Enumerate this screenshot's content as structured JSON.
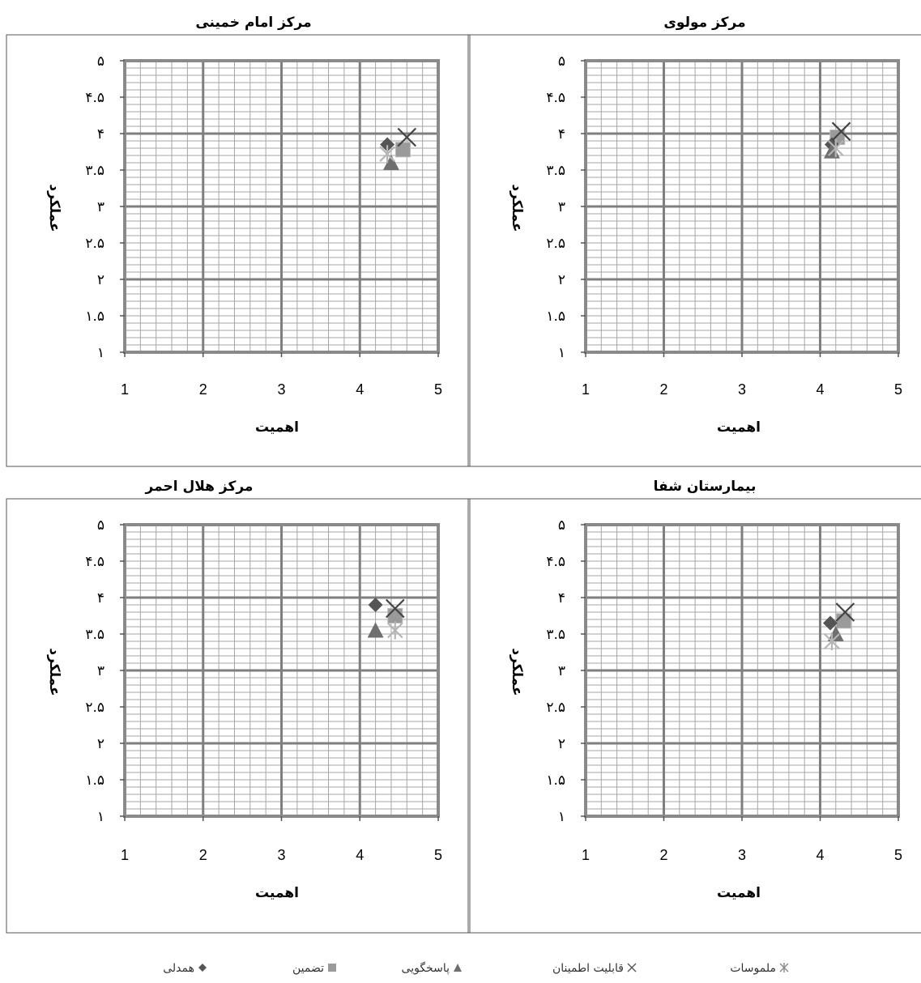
{
  "colors": {
    "frame": "#8a8a8a",
    "grid_minor": "#a6a6a6",
    "grid_major": "#7f7f7f",
    "marker_dark": "#555555",
    "marker_gray": "#9a9a9a",
    "marker_light": "#b5b5b5"
  },
  "legend": [
    {
      "label": "ملموسات",
      "marker": "asterisk"
    },
    {
      "label": "قابلیت اطمینان",
      "marker": "x"
    },
    {
      "label": "پاسخگویی",
      "marker": "triangle"
    },
    {
      "label": "تضمین",
      "marker": "square"
    },
    {
      "label": "همدلی",
      "marker": "diamond"
    }
  ],
  "chart_data": [
    {
      "type": "scatter",
      "title": "مرکز مولوی",
      "xlabel": "اهمیت",
      "ylabel": "عملکرد",
      "xlim": [
        1,
        5
      ],
      "ylim": [
        1,
        5
      ],
      "x_ticks": [
        "1",
        "2",
        "3",
        "4",
        "5"
      ],
      "y_ticks": [
        "۱",
        "۱.۵",
        "۲",
        "۲.۵",
        "۳",
        "۳.۵",
        "۴",
        "۴.۵",
        "۵"
      ],
      "grid": true,
      "series": [
        {
          "name": "ملموسات",
          "x": 4.2,
          "y": 3.8
        },
        {
          "name": "قابلیت اطمینان",
          "x": 4.27,
          "y": 4.03
        },
        {
          "name": "پاسخگویی",
          "x": 4.15,
          "y": 3.76
        },
        {
          "name": "تضمین",
          "x": 4.22,
          "y": 3.95
        },
        {
          "name": "همدلی",
          "x": 4.15,
          "y": 3.85
        }
      ]
    },
    {
      "type": "scatter",
      "title": "مرکز امام خمینی",
      "xlabel": "اهمیت",
      "ylabel": "عملکرد",
      "xlim": [
        1,
        5
      ],
      "ylim": [
        1,
        5
      ],
      "x_ticks": [
        "1",
        "2",
        "3",
        "4",
        "5"
      ],
      "y_ticks": [
        "۱",
        "۱.۵",
        "۲",
        "۲.۵",
        "۳",
        "۳.۵",
        "۴",
        "۴.۵",
        "۵"
      ],
      "grid": true,
      "series": [
        {
          "name": "ملموسات",
          "x": 4.35,
          "y": 3.72
        },
        {
          "name": "قابلیت اطمینان",
          "x": 4.6,
          "y": 3.95
        },
        {
          "name": "پاسخگویی",
          "x": 4.4,
          "y": 3.6
        },
        {
          "name": "تضمین",
          "x": 4.55,
          "y": 3.78
        },
        {
          "name": "همدلی",
          "x": 4.35,
          "y": 3.85
        }
      ]
    },
    {
      "type": "scatter",
      "title": "بیمارستان شفا",
      "xlabel": "اهمیت",
      "ylabel": "عملکرد",
      "xlim": [
        1,
        5
      ],
      "ylim": [
        1,
        5
      ],
      "x_ticks": [
        "1",
        "2",
        "3",
        "4",
        "5"
      ],
      "y_ticks": [
        "۱",
        "۱.۵",
        "۲",
        "۲.۵",
        "۳",
        "۳.۵",
        "۴",
        "۴.۵",
        "۵"
      ],
      "grid": true,
      "series": [
        {
          "name": "ملموسات",
          "x": 4.15,
          "y": 3.4
        },
        {
          "name": "قابلیت اطمینان",
          "x": 4.32,
          "y": 3.8
        },
        {
          "name": "پاسخگویی",
          "x": 4.2,
          "y": 3.5
        },
        {
          "name": "تضمین",
          "x": 4.3,
          "y": 3.68
        },
        {
          "name": "همدلی",
          "x": 4.13,
          "y": 3.65
        }
      ]
    },
    {
      "type": "scatter",
      "title": "مرکز هلال احمر",
      "xlabel": "اهمیت",
      "ylabel": "عملکرد",
      "xlim": [
        1,
        5
      ],
      "ylim": [
        1,
        5
      ],
      "x_ticks": [
        "1",
        "2",
        "3",
        "4",
        "5"
      ],
      "y_ticks": [
        "۱",
        "۱.۵",
        "۲",
        "۲.۵",
        "۳",
        "۳.۵",
        "۴",
        "۴.۵",
        "۵"
      ],
      "grid": true,
      "series": [
        {
          "name": "ملموسات",
          "x": 4.45,
          "y": 3.55
        },
        {
          "name": "قابلیت اطمینان",
          "x": 4.45,
          "y": 3.85
        },
        {
          "name": "پاسخگویی",
          "x": 4.2,
          "y": 3.55
        },
        {
          "name": "تضمین",
          "x": 4.45,
          "y": 3.75
        },
        {
          "name": "همدلی",
          "x": 4.2,
          "y": 3.9
        }
      ]
    }
  ]
}
